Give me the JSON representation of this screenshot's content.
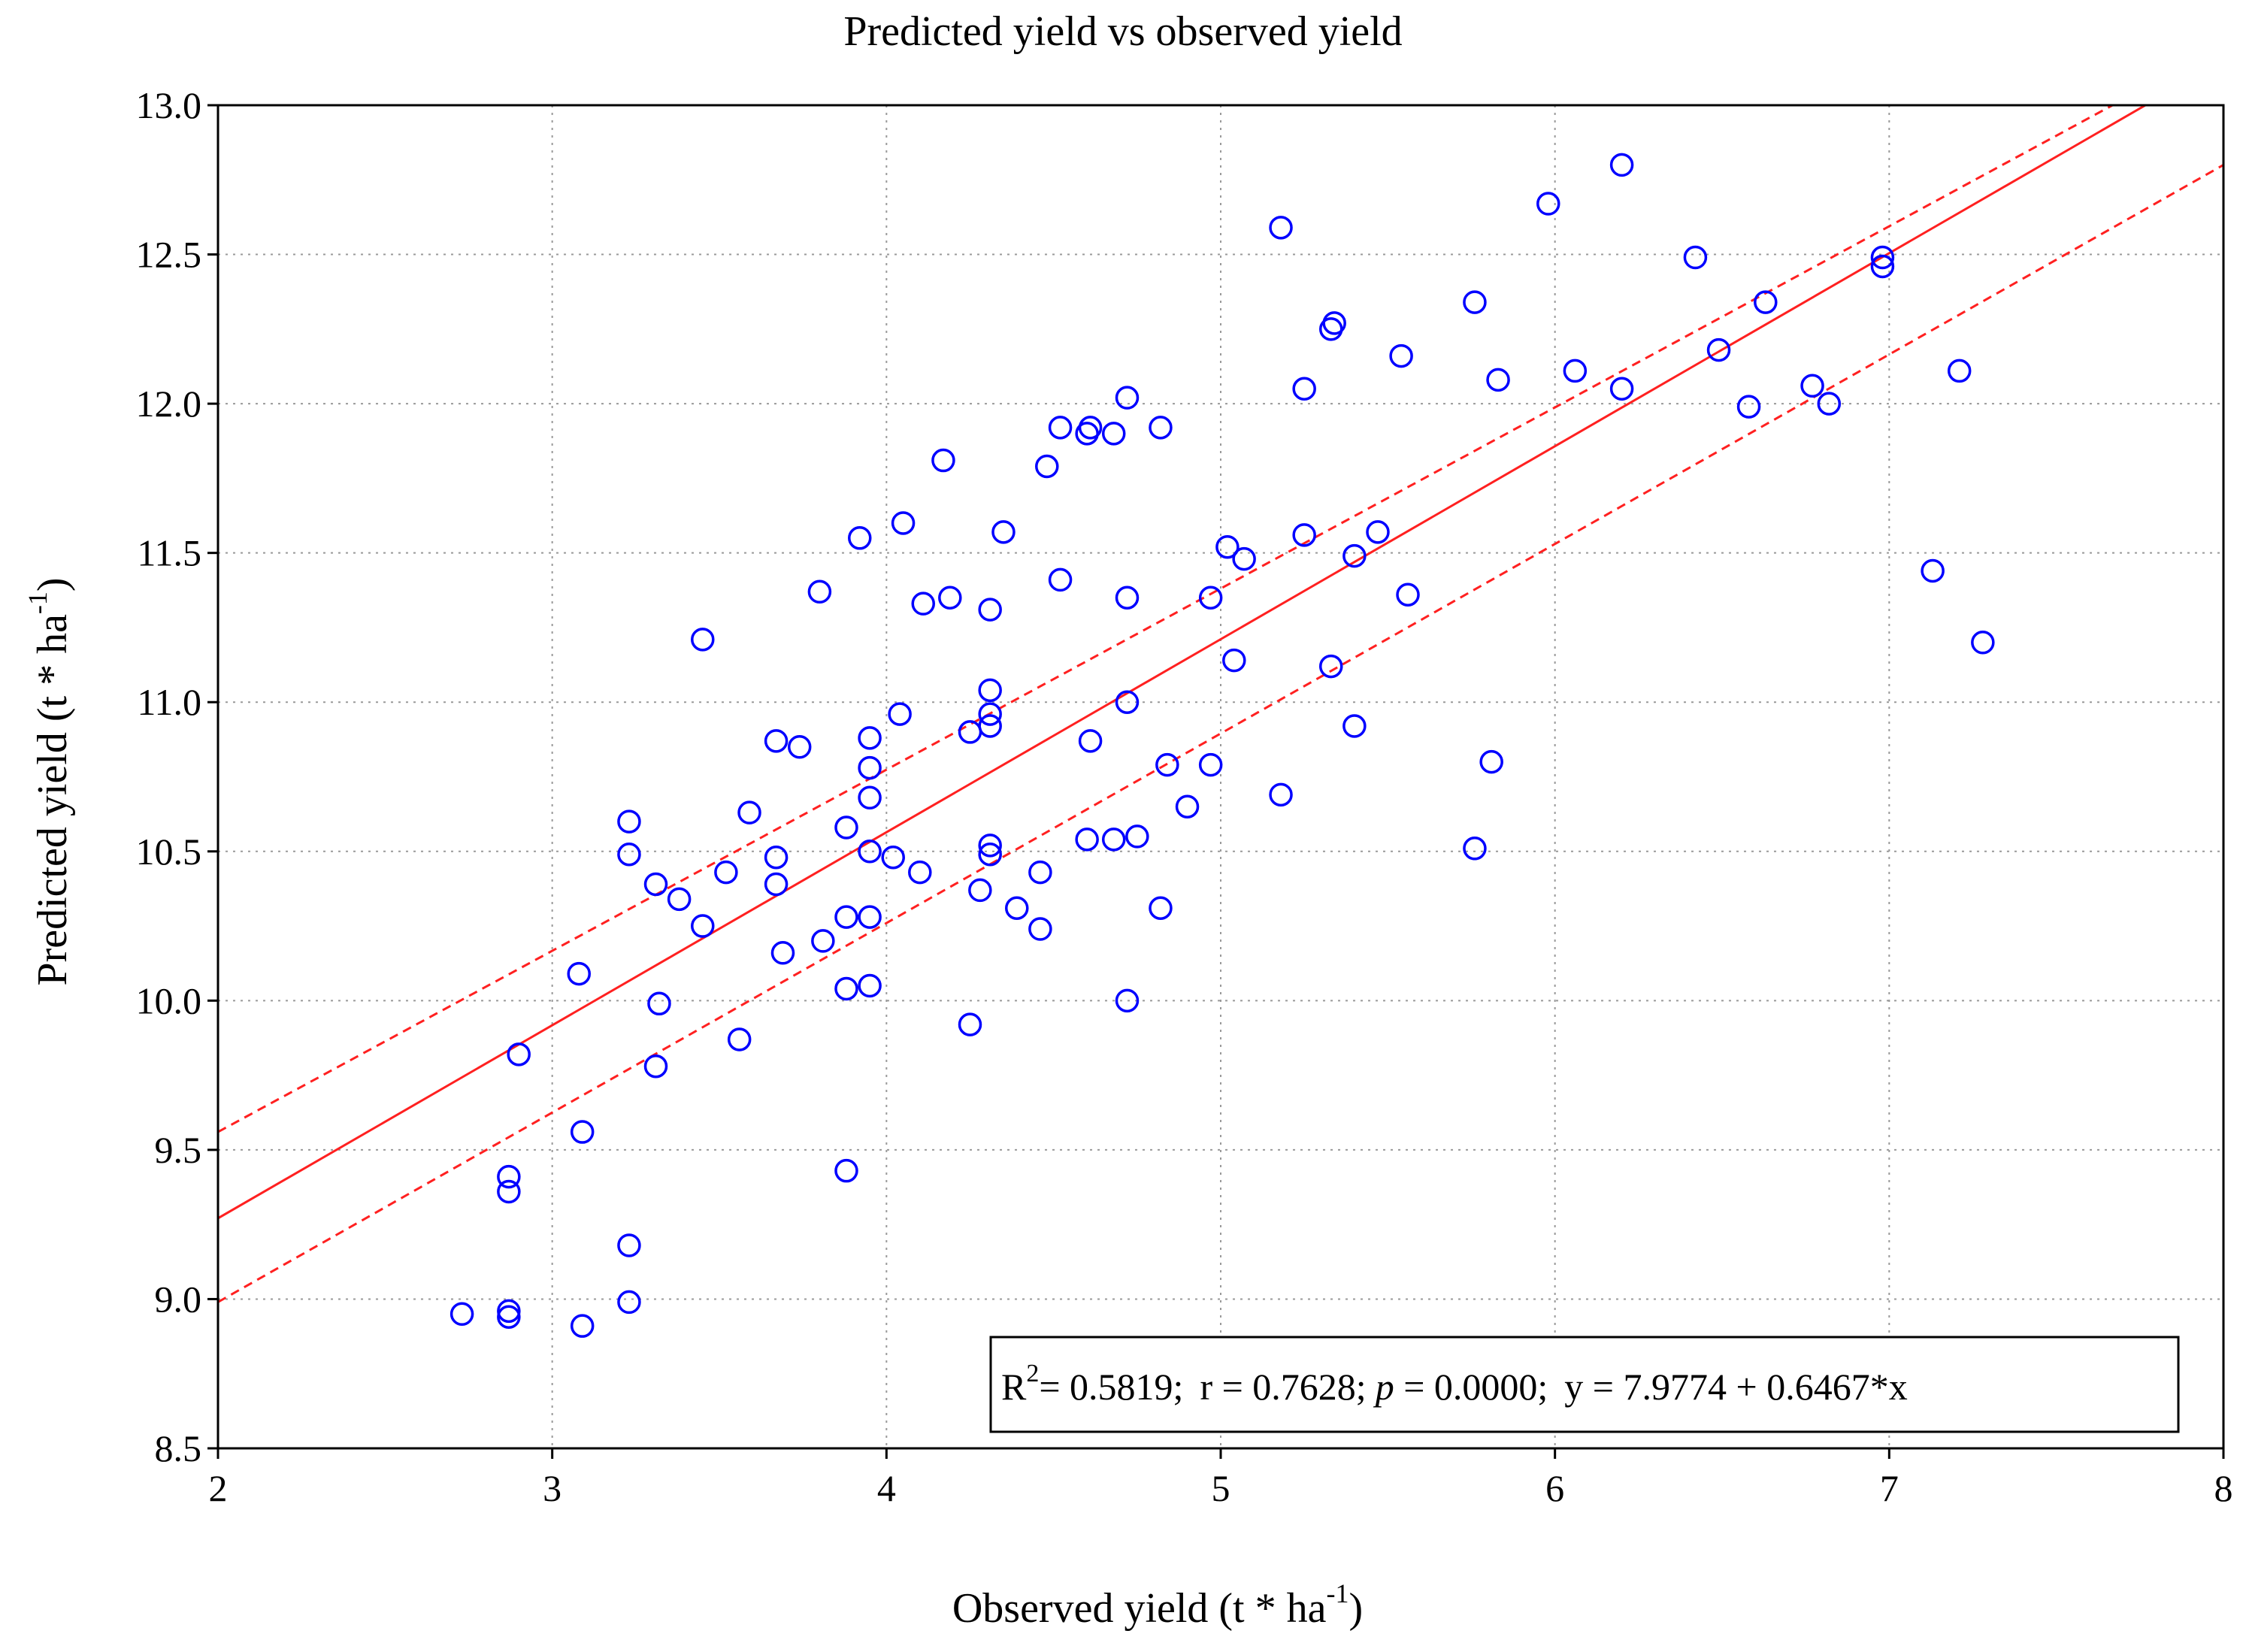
{
  "chart_data": {
    "type": "scatter",
    "title": "Predicted yield vs observed yield",
    "xlabel": "Observed yield (t * ha",
    "xlabel_sup": "-1",
    "xlabel_close": ")",
    "ylabel": "Predicted yield (t * ha",
    "ylabel_sup": "-1",
    "ylabel_close": ")",
    "xlim": [
      2,
      8
    ],
    "ylim": [
      8.5,
      13.0
    ],
    "x_ticks": [
      2,
      3,
      4,
      5,
      6,
      7,
      8
    ],
    "x_tick_labels": [
      "2",
      "3",
      "4",
      "5",
      "6",
      "7",
      "8"
    ],
    "y_ticks": [
      8.5,
      9.0,
      9.5,
      10.0,
      10.5,
      11.0,
      11.5,
      12.0,
      12.5,
      13.0
    ],
    "y_tick_labels": [
      "8.5",
      "9.0",
      "9.5",
      "10.0",
      "10.5",
      "11.0",
      "11.5",
      "12.0",
      "12.5",
      "13.0"
    ],
    "grid": true,
    "fit": {
      "intercept": 7.9774,
      "slope": 0.6467
    },
    "confidence_band": {
      "upper": [
        [
          2,
          9.56
        ],
        [
          7.8,
          13.08
        ]
      ],
      "lower": [
        [
          2,
          8.99
        ],
        [
          8,
          12.8
        ]
      ]
    },
    "stats": {
      "r2_label": "R",
      "r2_sup": "2",
      "r2_value": "= 0.5819;",
      "r_text": "r = 0.7628;",
      "p_symbol": "p",
      "p_value": " = 0.0000;",
      "equation": "y = 7.9774 + 0.6467*x"
    },
    "points": [
      [
        2.73,
        8.95
      ],
      [
        2.87,
        8.94
      ],
      [
        2.87,
        8.96
      ],
      [
        2.87,
        9.36
      ],
      [
        2.87,
        9.41
      ],
      [
        2.9,
        9.82
      ],
      [
        3.08,
        10.09
      ],
      [
        3.09,
        9.56
      ],
      [
        3.09,
        8.91
      ],
      [
        3.23,
        10.6
      ],
      [
        3.23,
        10.49
      ],
      [
        3.23,
        9.18
      ],
      [
        3.23,
        8.99
      ],
      [
        3.31,
        10.39
      ],
      [
        3.31,
        9.78
      ],
      [
        3.32,
        9.99
      ],
      [
        3.38,
        10.34
      ],
      [
        3.45,
        11.21
      ],
      [
        3.45,
        10.25
      ],
      [
        3.52,
        10.43
      ],
      [
        3.56,
        9.87
      ],
      [
        3.59,
        10.63
      ],
      [
        3.67,
        10.87
      ],
      [
        3.67,
        10.48
      ],
      [
        3.67,
        10.39
      ],
      [
        3.69,
        10.16
      ],
      [
        3.74,
        10.85
      ],
      [
        3.8,
        11.37
      ],
      [
        3.81,
        10.2
      ],
      [
        3.88,
        10.58
      ],
      [
        3.88,
        10.28
      ],
      [
        3.88,
        10.04
      ],
      [
        3.88,
        9.43
      ],
      [
        3.92,
        11.55
      ],
      [
        3.95,
        10.88
      ],
      [
        3.95,
        10.78
      ],
      [
        3.95,
        10.68
      ],
      [
        3.95,
        10.5
      ],
      [
        3.95,
        10.28
      ],
      [
        3.95,
        10.05
      ],
      [
        4.02,
        10.48
      ],
      [
        4.04,
        10.96
      ],
      [
        4.05,
        11.6
      ],
      [
        4.11,
        11.33
      ],
      [
        4.1,
        10.43
      ],
      [
        4.17,
        11.81
      ],
      [
        4.19,
        11.35
      ],
      [
        4.25,
        10.9
      ],
      [
        4.25,
        9.92
      ],
      [
        4.28,
        10.37
      ],
      [
        4.31,
        11.31
      ],
      [
        4.31,
        11.04
      ],
      [
        4.31,
        10.96
      ],
      [
        4.31,
        10.92
      ],
      [
        4.31,
        10.52
      ],
      [
        4.31,
        10.49
      ],
      [
        4.35,
        11.57
      ],
      [
        4.39,
        10.31
      ],
      [
        4.46,
        10.43
      ],
      [
        4.46,
        10.24
      ],
      [
        4.48,
        11.79
      ],
      [
        4.52,
        11.92
      ],
      [
        4.52,
        11.41
      ],
      [
        4.6,
        11.9
      ],
      [
        4.61,
        11.92
      ],
      [
        4.61,
        10.87
      ],
      [
        4.6,
        10.54
      ],
      [
        4.68,
        11.9
      ],
      [
        4.68,
        10.54
      ],
      [
        4.72,
        12.02
      ],
      [
        4.72,
        11.35
      ],
      [
        4.72,
        11.0
      ],
      [
        4.72,
        10.0
      ],
      [
        4.75,
        10.55
      ],
      [
        4.82,
        11.92
      ],
      [
        4.82,
        10.31
      ],
      [
        4.84,
        10.79
      ],
      [
        4.9,
        10.65
      ],
      [
        4.97,
        11.35
      ],
      [
        4.97,
        10.79
      ],
      [
        5.02,
        11.52
      ],
      [
        5.04,
        11.14
      ],
      [
        5.07,
        11.48
      ],
      [
        5.18,
        12.59
      ],
      [
        5.18,
        10.69
      ],
      [
        5.25,
        12.05
      ],
      [
        5.25,
        11.56
      ],
      [
        5.33,
        12.25
      ],
      [
        5.34,
        12.27
      ],
      [
        5.33,
        11.12
      ],
      [
        5.4,
        11.49
      ],
      [
        5.4,
        10.92
      ],
      [
        5.47,
        11.57
      ],
      [
        5.54,
        12.16
      ],
      [
        5.56,
        11.36
      ],
      [
        5.76,
        12.34
      ],
      [
        5.76,
        10.51
      ],
      [
        5.81,
        10.8
      ],
      [
        5.83,
        12.08
      ],
      [
        5.98,
        12.67
      ],
      [
        6.06,
        12.11
      ],
      [
        6.2,
        12.8
      ],
      [
        6.2,
        12.05
      ],
      [
        6.42,
        12.49
      ],
      [
        6.49,
        12.18
      ],
      [
        6.58,
        11.99
      ],
      [
        6.63,
        12.34
      ],
      [
        6.77,
        12.06
      ],
      [
        6.82,
        12.0
      ],
      [
        6.98,
        12.49
      ],
      [
        6.98,
        12.46
      ],
      [
        7.13,
        11.44
      ],
      [
        7.21,
        12.11
      ],
      [
        7.28,
        11.2
      ]
    ]
  }
}
